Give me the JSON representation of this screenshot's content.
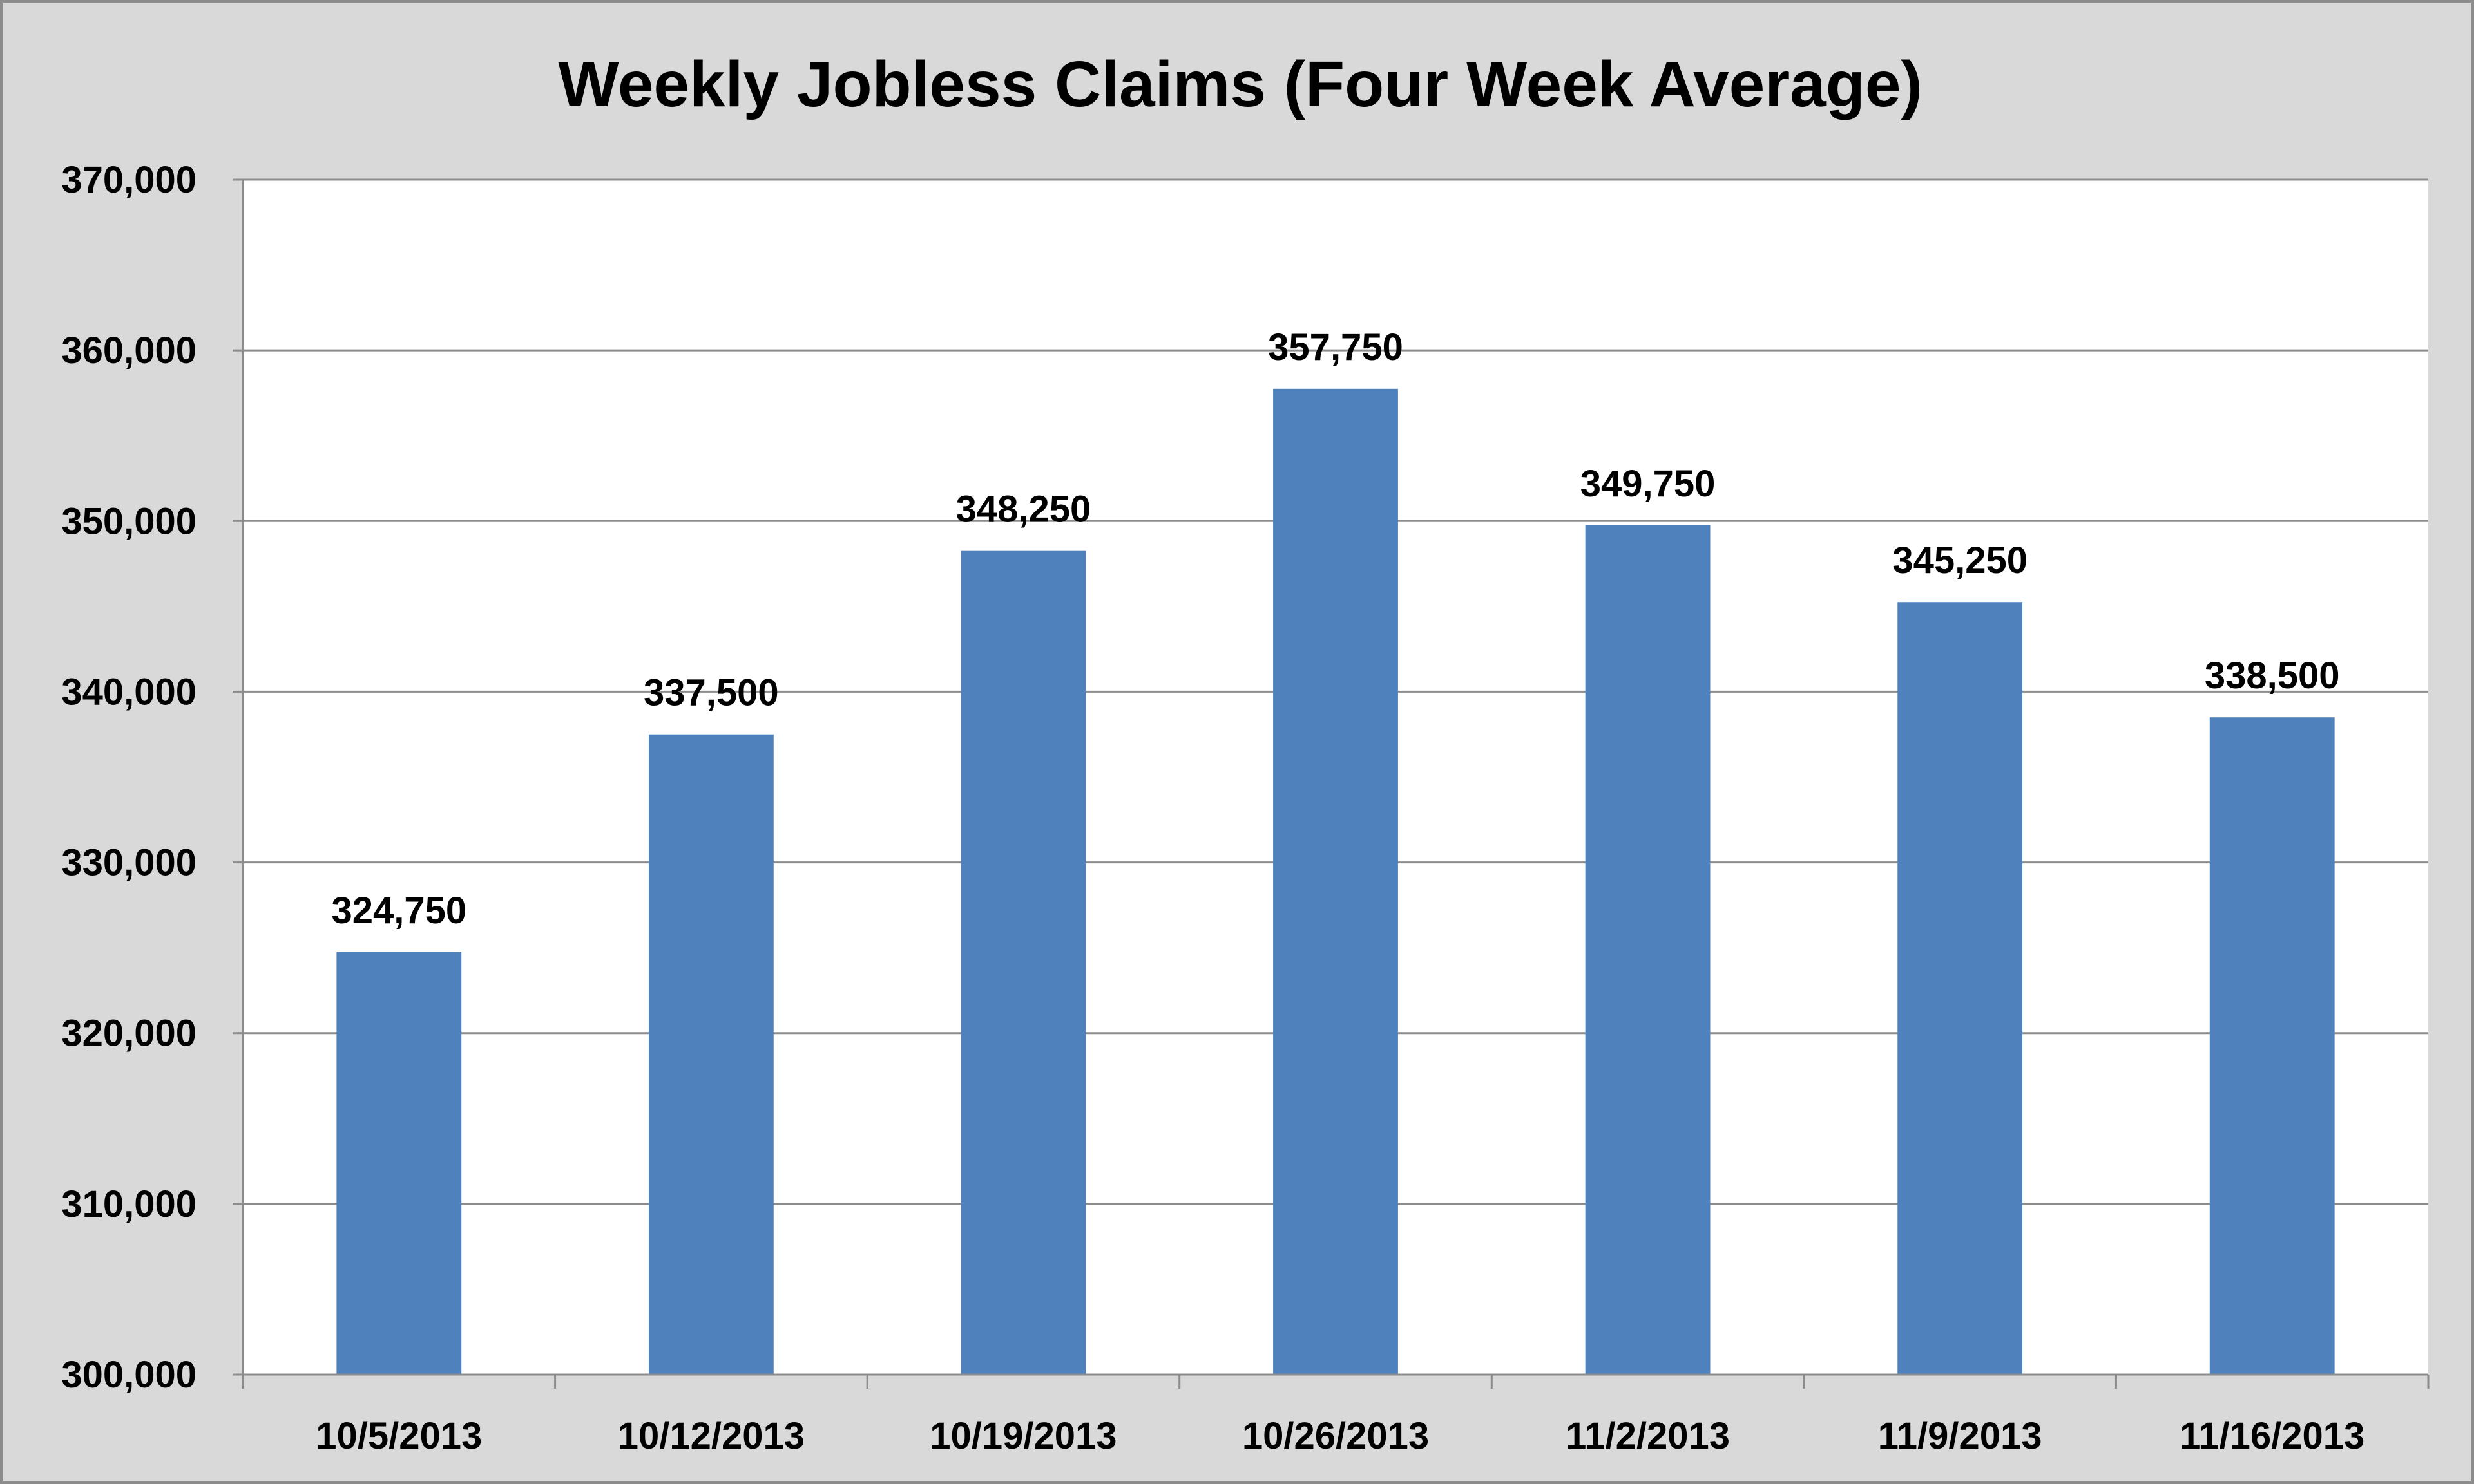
{
  "chart_data": {
    "type": "bar",
    "title": "Weekly Jobless Claims (Four Week Average)",
    "xlabel": "",
    "ylabel": "",
    "categories": [
      "10/5/2013",
      "10/12/2013",
      "10/19/2013",
      "10/26/2013",
      "11/2/2013",
      "11/9/2013",
      "11/16/2013"
    ],
    "values": [
      324750,
      337500,
      348250,
      357750,
      349750,
      345250,
      338500
    ],
    "data_labels": [
      "324,750",
      "337,500",
      "348,250",
      "357,750",
      "349,750",
      "345,250",
      "338,500"
    ],
    "ylim": [
      300000,
      370000
    ],
    "yticks": [
      300000,
      310000,
      320000,
      330000,
      340000,
      350000,
      360000,
      370000
    ],
    "ytick_labels": [
      "300,000",
      "310,000",
      "320,000",
      "330,000",
      "340,000",
      "350,000",
      "360,000",
      "370,000"
    ],
    "grid": true,
    "legend": "none",
    "colors": {
      "bar": "#4f81bd",
      "background": "#d9d9d9",
      "plot_background": "#ffffff",
      "gridline": "#8c8c8c",
      "axis": "#8c8c8c",
      "border": "#8c8c8c"
    }
  }
}
